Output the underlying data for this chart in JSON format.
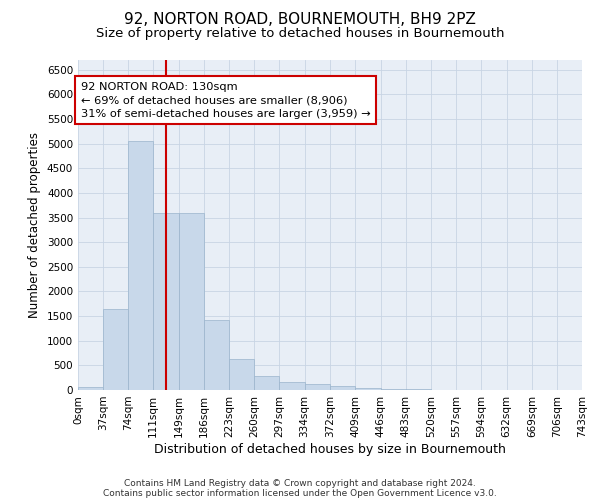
{
  "title": "92, NORTON ROAD, BOURNEMOUTH, BH9 2PZ",
  "subtitle": "Size of property relative to detached houses in Bournemouth",
  "xlabel": "Distribution of detached houses by size in Bournemouth",
  "ylabel": "Number of detached properties",
  "footnote1": "Contains HM Land Registry data © Crown copyright and database right 2024.",
  "footnote2": "Contains public sector information licensed under the Open Government Licence v3.0.",
  "bin_edges": [
    0,
    37,
    74,
    111,
    149,
    186,
    223,
    260,
    297,
    334,
    372,
    409,
    446,
    483,
    520,
    557,
    594,
    632,
    669,
    706,
    743
  ],
  "bar_heights": [
    60,
    1650,
    5060,
    3600,
    3590,
    1420,
    620,
    290,
    155,
    130,
    90,
    35,
    25,
    15,
    8,
    5,
    3,
    2,
    2,
    2
  ],
  "bar_color": "#c8d8ea",
  "bar_edgecolor": "#9ab4cc",
  "vline_x": 130,
  "vline_color": "#cc0000",
  "annotation_line1": "92 NORTON ROAD: 130sqm",
  "annotation_line2": "← 69% of detached houses are smaller (8,906)",
  "annotation_line3": "31% of semi-detached houses are larger (3,959) →",
  "annotation_box_edgecolor": "#cc0000",
  "annotation_box_facecolor": "#ffffff",
  "ylim": [
    0,
    6700
  ],
  "grid_color": "#c8d4e4",
  "background_color": "#e8eef6",
  "title_fontsize": 11,
  "subtitle_fontsize": 9.5,
  "ylabel_fontsize": 8.5,
  "xlabel_fontsize": 9,
  "tick_fontsize": 7.5,
  "footnote_fontsize": 6.5
}
